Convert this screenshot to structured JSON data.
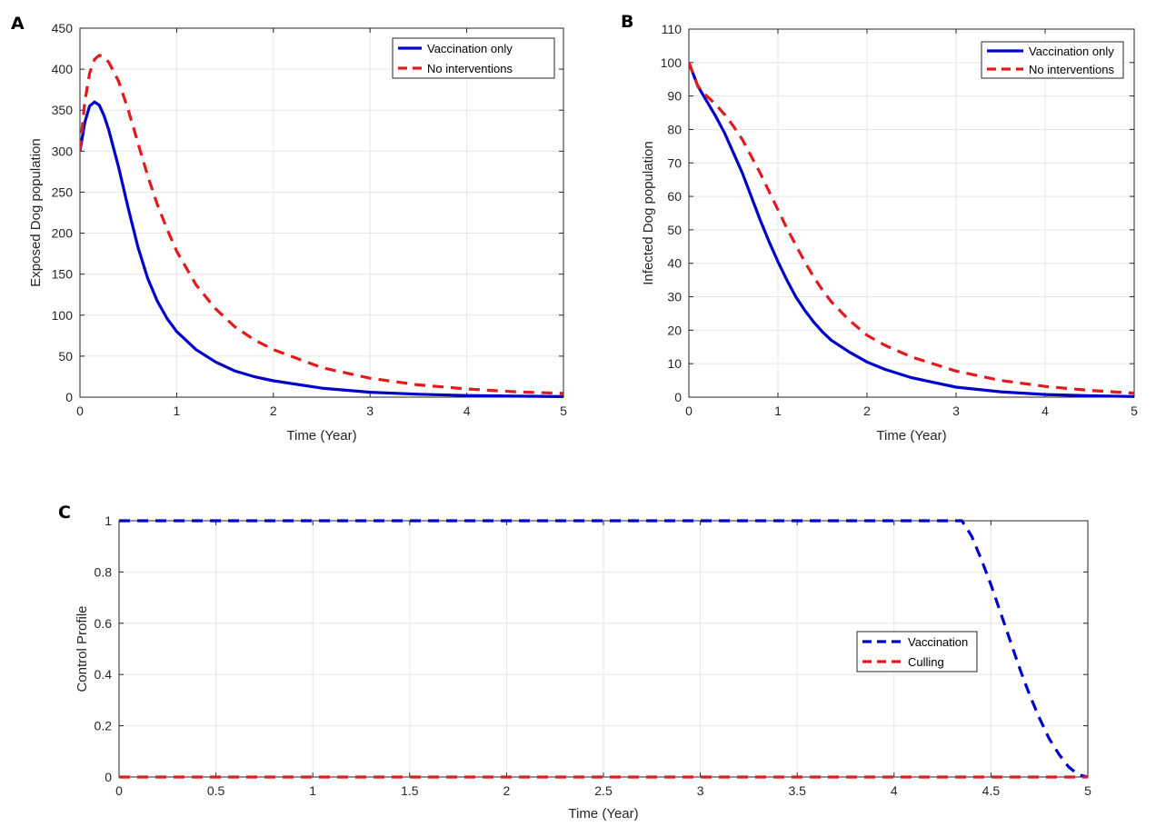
{
  "chart_data": [
    {
      "panel": "A",
      "type": "line",
      "xlabel": "Time (Year)",
      "ylabel": "Exposed Dog population",
      "xlim": [
        0,
        5
      ],
      "ylim": [
        0,
        450
      ],
      "xticks": [
        0,
        1,
        2,
        3,
        4,
        5
      ],
      "yticks": [
        0,
        50,
        100,
        150,
        200,
        250,
        300,
        350,
        400,
        450
      ],
      "grid": true,
      "legend": "top-right",
      "series": [
        {
          "name": "Vaccination only",
          "color": "#0000CD",
          "style": "solid",
          "x": [
            0,
            0.05,
            0.1,
            0.15,
            0.2,
            0.25,
            0.3,
            0.4,
            0.5,
            0.6,
            0.7,
            0.8,
            0.9,
            1.0,
            1.2,
            1.4,
            1.6,
            1.8,
            2.0,
            2.5,
            3.0,
            3.5,
            4.0,
            4.5,
            5.0
          ],
          "y": [
            300,
            335,
            355,
            360,
            356,
            343,
            325,
            280,
            230,
            183,
            145,
            117,
            96,
            80,
            58,
            43,
            32,
            25,
            20,
            11,
            6,
            3.5,
            2,
            1.2,
            0.7
          ]
        },
        {
          "name": "No interventions",
          "color": "#E31A1C",
          "style": "dashed",
          "x": [
            0,
            0.05,
            0.1,
            0.15,
            0.2,
            0.25,
            0.3,
            0.4,
            0.5,
            0.6,
            0.7,
            0.8,
            0.9,
            1.0,
            1.2,
            1.4,
            1.6,
            1.8,
            2.0,
            2.5,
            3.0,
            3.5,
            4.0,
            4.5,
            5.0
          ],
          "y": [
            300,
            360,
            395,
            412,
            417,
            415,
            408,
            385,
            350,
            310,
            270,
            235,
            205,
            178,
            137,
            108,
            86,
            70,
            58,
            36,
            23,
            15,
            10,
            6.5,
            4.5
          ]
        }
      ]
    },
    {
      "panel": "B",
      "type": "line",
      "xlabel": "Time (Year)",
      "ylabel": "Infected Dog population",
      "xlim": [
        0,
        5
      ],
      "ylim": [
        0,
        110
      ],
      "xticks": [
        0,
        1,
        2,
        3,
        4,
        5
      ],
      "yticks": [
        0,
        10,
        20,
        30,
        40,
        50,
        60,
        70,
        80,
        90,
        100,
        110
      ],
      "grid": true,
      "legend": "top-right",
      "series": [
        {
          "name": "Vaccination only",
          "color": "#0000CD",
          "style": "solid",
          "x": [
            0,
            0.1,
            0.2,
            0.3,
            0.4,
            0.5,
            0.6,
            0.7,
            0.8,
            0.9,
            1.0,
            1.1,
            1.2,
            1.3,
            1.4,
            1.5,
            1.6,
            1.8,
            2.0,
            2.2,
            2.5,
            3.0,
            3.5,
            4.0,
            4.5,
            5.0
          ],
          "y": [
            100,
            93,
            88.5,
            84,
            79,
            73,
            67,
            60,
            53,
            46.5,
            40.5,
            35,
            30,
            26,
            22.5,
            19.5,
            17,
            13.5,
            10.5,
            8.3,
            5.8,
            3,
            1.6,
            0.8,
            0.4,
            0.2
          ]
        },
        {
          "name": "No interventions",
          "color": "#E31A1C",
          "style": "dashed",
          "x": [
            0,
            0.1,
            0.2,
            0.3,
            0.4,
            0.5,
            0.6,
            0.7,
            0.8,
            0.9,
            1.0,
            1.1,
            1.2,
            1.3,
            1.4,
            1.5,
            1.6,
            1.8,
            2.0,
            2.2,
            2.5,
            3.0,
            3.5,
            4.0,
            4.5,
            5.0
          ],
          "y": [
            100,
            93,
            90,
            87.5,
            84.5,
            81,
            77,
            72,
            67,
            61.5,
            56,
            50.5,
            45.5,
            40.5,
            36,
            32,
            28.5,
            23,
            18.5,
            15.5,
            12,
            7.8,
            5,
            3.2,
            2,
            1.2
          ]
        }
      ]
    },
    {
      "panel": "C",
      "type": "line",
      "xlabel": "Time (Year)",
      "ylabel": "Control Profile",
      "xlim": [
        0,
        5
      ],
      "ylim": [
        0,
        1
      ],
      "xticks": [
        0,
        0.5,
        1,
        1.5,
        2,
        2.5,
        3,
        3.5,
        4,
        4.5,
        5
      ],
      "yticks": [
        0,
        0.2,
        0.4,
        0.6,
        0.8,
        1
      ],
      "grid": true,
      "legend": "center-right",
      "series": [
        {
          "name": "Vaccination",
          "color": "#0000CD",
          "style": "dashed",
          "x": [
            0,
            4.35,
            4.4,
            4.45,
            4.5,
            4.55,
            4.6,
            4.65,
            4.7,
            4.75,
            4.8,
            4.85,
            4.9,
            4.95,
            5.0
          ],
          "y": [
            1,
            1,
            0.94,
            0.85,
            0.75,
            0.64,
            0.53,
            0.42,
            0.32,
            0.23,
            0.15,
            0.09,
            0.04,
            0.01,
            0
          ]
        },
        {
          "name": "Culling",
          "color": "#E31A1C",
          "style": "dashed",
          "x": [
            0,
            5
          ],
          "y": [
            0,
            0
          ]
        }
      ]
    }
  ]
}
